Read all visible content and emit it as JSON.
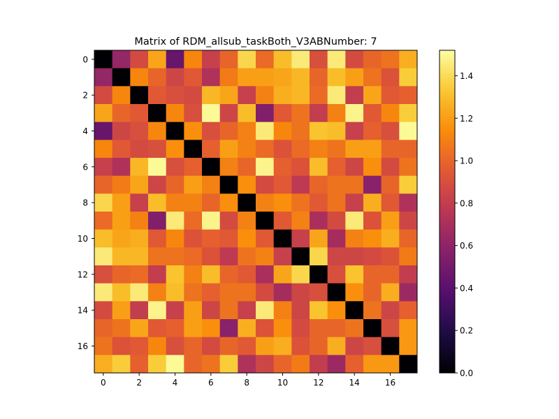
{
  "chart_data": {
    "type": "heatmap",
    "title": "Matrix of RDM_allsub_taskBoth_V3ABNumber: 7",
    "xlabel": "",
    "ylabel": "",
    "colormap": "inferno",
    "vmin": 0.0,
    "vmax": 1.52,
    "x_ticks": [
      0,
      2,
      4,
      6,
      8,
      10,
      12,
      14,
      16
    ],
    "y_ticks": [
      0,
      2,
      4,
      6,
      8,
      10,
      12,
      14,
      16
    ],
    "colorbar_ticks": [
      0.0,
      0.2,
      0.4,
      0.6,
      0.8,
      1.0,
      1.2,
      1.4
    ],
    "colorbar_tick_labels": [
      "0.0",
      "0.2",
      "0.4",
      "0.6",
      "0.8",
      "1.0",
      "1.2",
      "1.4"
    ],
    "matrix": [
      [
        0.0,
        0.62,
        0.88,
        1.22,
        0.45,
        1.12,
        0.82,
        1.0,
        1.38,
        1.02,
        1.3,
        1.45,
        0.9,
        1.45,
        0.88,
        1.0,
        1.05,
        1.25
      ],
      [
        0.62,
        0.0,
        1.12,
        1.0,
        0.85,
        0.95,
        0.72,
        1.08,
        1.2,
        1.2,
        1.22,
        1.28,
        1.0,
        1.3,
        1.2,
        1.05,
        0.92,
        1.35
      ],
      [
        0.88,
        1.12,
        0.0,
        0.95,
        0.9,
        0.88,
        1.28,
        1.22,
        0.82,
        1.1,
        1.25,
        1.28,
        1.02,
        1.45,
        0.8,
        1.22,
        0.95,
        0.98
      ],
      [
        1.22,
        1.0,
        0.95,
        0.0,
        1.12,
        0.9,
        1.5,
        0.85,
        1.3,
        0.55,
        0.95,
        1.05,
        0.8,
        1.1,
        1.48,
        0.95,
        1.12,
        1.35
      ],
      [
        0.45,
        0.85,
        0.9,
        1.12,
        0.0,
        1.15,
        0.9,
        1.0,
        1.1,
        1.45,
        1.12,
        1.05,
        1.32,
        1.3,
        0.82,
        0.98,
        0.9,
        1.5
      ],
      [
        1.12,
        0.95,
        0.88,
        0.9,
        1.15,
        0.0,
        0.98,
        1.2,
        1.1,
        1.02,
        0.92,
        1.02,
        1.1,
        1.05,
        1.2,
        1.2,
        1.0,
        1.0
      ],
      [
        0.82,
        0.72,
        1.28,
        1.5,
        0.9,
        0.98,
        0.0,
        1.1,
        1.0,
        1.48,
        0.98,
        0.92,
        1.3,
        0.98,
        0.85,
        1.15,
        0.88,
        1.05
      ],
      [
        1.0,
        1.08,
        1.22,
        0.85,
        1.0,
        1.2,
        1.1,
        0.0,
        1.15,
        0.88,
        0.95,
        0.78,
        1.0,
        1.05,
        1.05,
        0.58,
        1.0,
        1.35
      ],
      [
        1.38,
        1.2,
        0.82,
        1.3,
        1.1,
        1.1,
        1.0,
        1.15,
        0.0,
        1.1,
        1.15,
        1.05,
        0.95,
        1.05,
        0.82,
        1.25,
        0.95,
        0.72
      ],
      [
        1.02,
        1.2,
        1.1,
        0.55,
        1.45,
        1.02,
        1.48,
        0.88,
        1.1,
        0.0,
        0.95,
        1.1,
        0.7,
        0.88,
        1.45,
        0.92,
        1.2,
        0.85
      ],
      [
        1.3,
        1.22,
        1.25,
        0.95,
        1.12,
        0.92,
        0.98,
        0.95,
        1.15,
        0.95,
        0.0,
        0.82,
        1.22,
        0.68,
        1.1,
        1.15,
        1.25,
        1.0
      ],
      [
        1.45,
        1.28,
        1.28,
        1.05,
        1.05,
        1.02,
        0.92,
        0.78,
        1.05,
        1.1,
        0.82,
        0.0,
        1.38,
        0.85,
        0.85,
        0.88,
        0.92,
        1.08
      ],
      [
        0.9,
        1.0,
        1.02,
        0.8,
        1.32,
        1.1,
        1.3,
        1.0,
        0.95,
        0.7,
        1.22,
        1.38,
        0.0,
        0.9,
        1.32,
        1.0,
        1.0,
        0.8
      ],
      [
        1.45,
        1.3,
        1.45,
        1.1,
        1.3,
        1.05,
        0.98,
        1.05,
        1.05,
        0.88,
        0.68,
        0.85,
        0.9,
        0.0,
        1.15,
        1.0,
        1.25,
        0.65
      ],
      [
        0.88,
        1.2,
        0.8,
        1.48,
        0.82,
        1.2,
        0.85,
        1.05,
        0.82,
        1.45,
        1.1,
        0.85,
        1.32,
        1.15,
        0.0,
        1.05,
        0.85,
        0.98
      ],
      [
        1.0,
        1.05,
        1.22,
        0.95,
        0.98,
        1.2,
        1.15,
        0.58,
        1.25,
        0.92,
        1.15,
        0.88,
        1.0,
        1.0,
        1.05,
        0.0,
        0.9,
        1.18
      ],
      [
        1.05,
        0.92,
        0.95,
        1.12,
        0.9,
        1.0,
        0.88,
        1.0,
        0.95,
        1.2,
        1.25,
        0.92,
        1.0,
        1.25,
        0.85,
        0.9,
        0.0,
        1.18
      ],
      [
        1.25,
        1.35,
        0.98,
        1.35,
        1.5,
        1.0,
        1.05,
        1.35,
        0.72,
        0.85,
        1.0,
        1.08,
        0.8,
        0.65,
        0.98,
        1.18,
        1.18,
        0.0
      ]
    ]
  }
}
